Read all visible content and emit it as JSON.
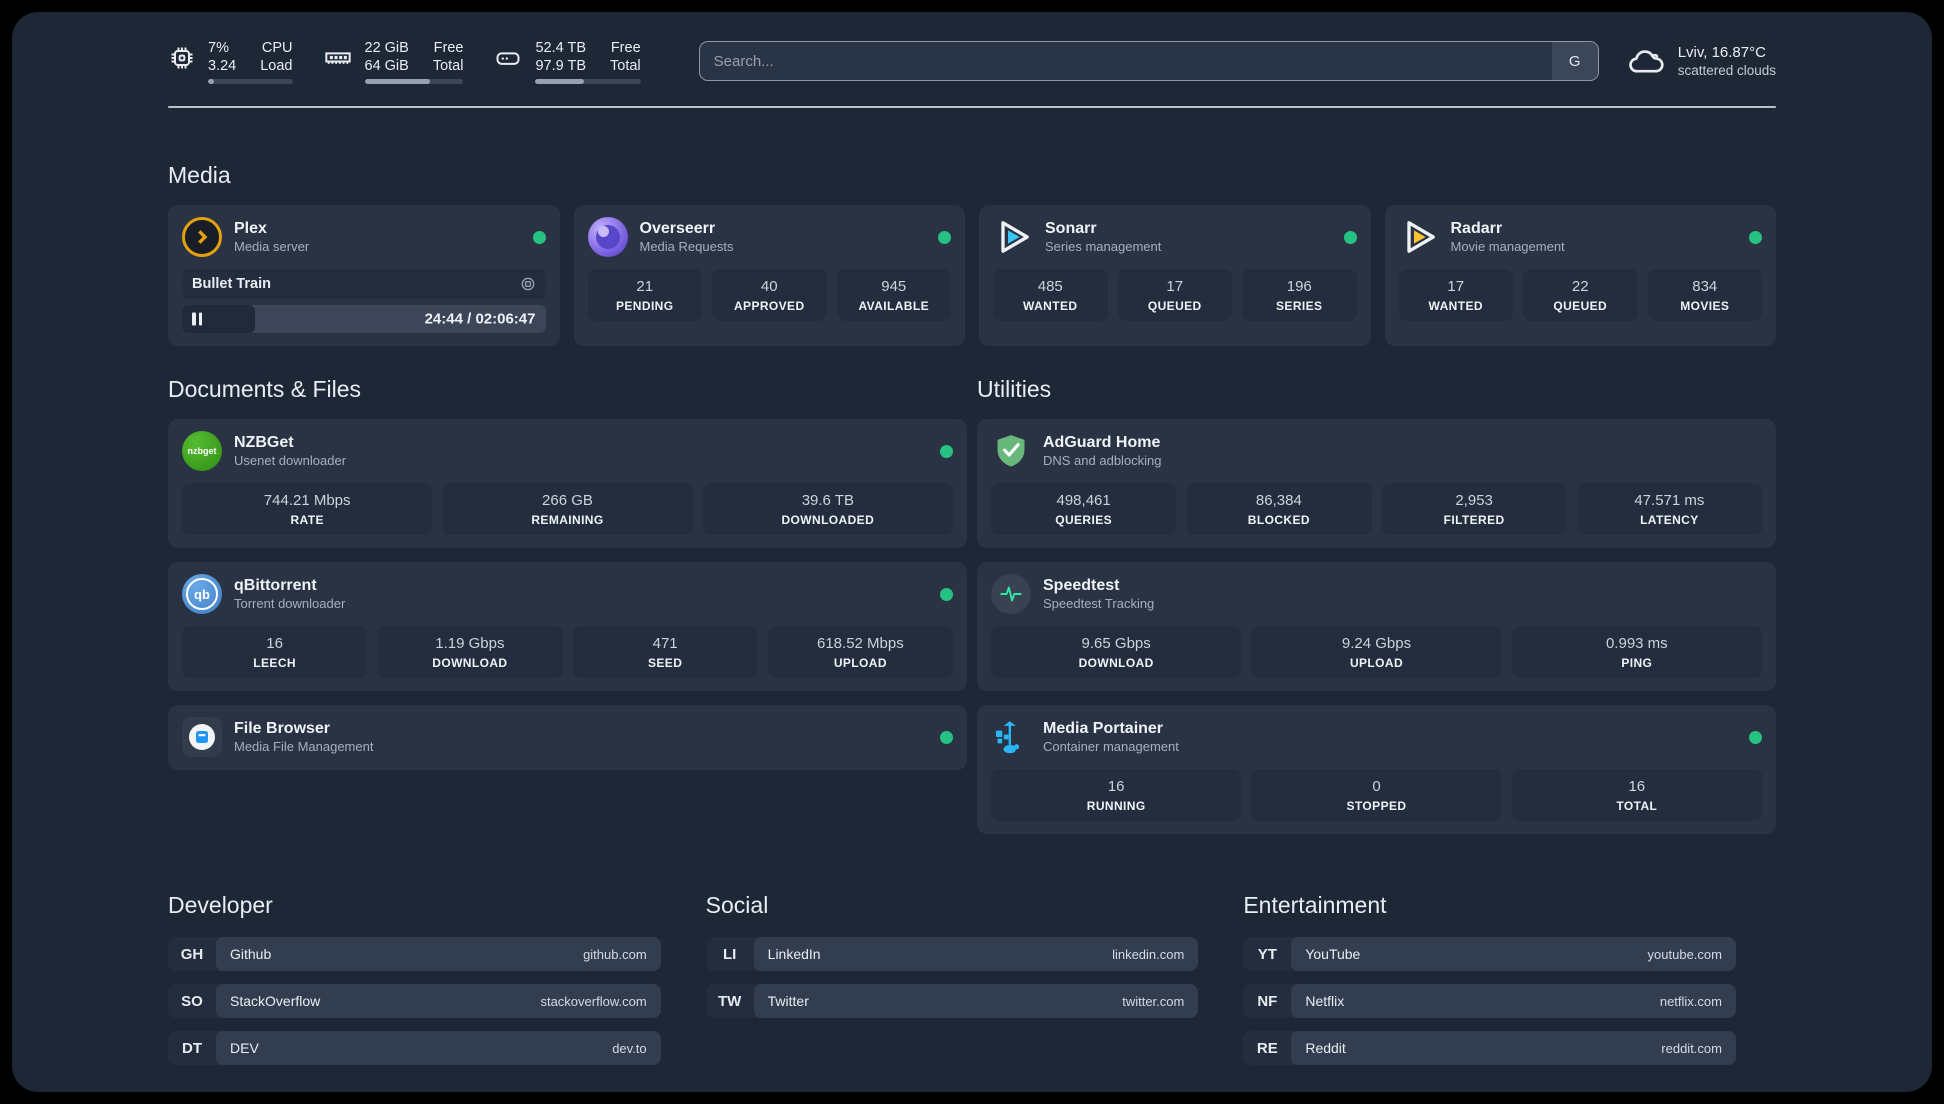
{
  "colors": {
    "background": "#1e2736",
    "card": "#2a3343",
    "tile": "#242d3d",
    "status_green": "#26c281",
    "plex_orange": "#e5a00d",
    "sonarr_blue": "#38c6f4",
    "radarr_yellow": "#ffc230",
    "nzbget_green": "#3ba318",
    "qbittorrent_blue": "#4a90d9",
    "adguard_green": "#68b77b",
    "speedtest_pulse": "#2ee6a8",
    "portainer_blue": "#29b6f6",
    "filebrowser_blue": "#2196f3"
  },
  "header": {
    "metrics": [
      {
        "icon": "cpu-icon",
        "value_top": "7%",
        "value_bottom": "3.24",
        "label_top": "CPU",
        "label_bottom": "Load",
        "progress": 7
      },
      {
        "icon": "ram-icon",
        "value_top": "22 GiB",
        "value_bottom": "64 GiB",
        "label_top": "Free",
        "label_bottom": "Total",
        "progress": 66
      },
      {
        "icon": "disk-icon",
        "value_top": "52.4 TB",
        "value_bottom": "97.9 TB",
        "label_top": "Free",
        "label_bottom": "Total",
        "progress": 46
      }
    ],
    "search": {
      "placeholder": "Search...",
      "button_label": "G"
    },
    "weather": {
      "icon": "cloud-icon",
      "location": "Lviv, 16.87°C",
      "condition": "scattered clouds"
    }
  },
  "media": {
    "title": "Media",
    "plex": {
      "title": "Plex",
      "subtitle": "Media server",
      "status": "online",
      "player": {
        "track": "Bullet Train",
        "time": "24:44 / 02:06:47",
        "progress": 20
      }
    },
    "overseerr": {
      "title": "Overseerr",
      "subtitle": "Media Requests",
      "status": "online",
      "stats": [
        {
          "value": "21",
          "label": "PENDING"
        },
        {
          "value": "40",
          "label": "APPROVED"
        },
        {
          "value": "945",
          "label": "AVAILABLE"
        }
      ]
    },
    "sonarr": {
      "title": "Sonarr",
      "subtitle": "Series management",
      "status": "online",
      "stats": [
        {
          "value": "485",
          "label": "WANTED"
        },
        {
          "value": "17",
          "label": "QUEUED"
        },
        {
          "value": "196",
          "label": "SERIES"
        }
      ]
    },
    "radarr": {
      "title": "Radarr",
      "subtitle": "Movie management",
      "status": "online",
      "stats": [
        {
          "value": "17",
          "label": "WANTED"
        },
        {
          "value": "22",
          "label": "QUEUED"
        },
        {
          "value": "834",
          "label": "MOVIES"
        }
      ]
    }
  },
  "documents": {
    "title": "Documents & Files",
    "nzbget": {
      "title": "NZBGet",
      "subtitle": "Usenet downloader",
      "status": "online",
      "icon_text": "nzbget",
      "stats": [
        {
          "value": "744.21 Mbps",
          "label": "RATE"
        },
        {
          "value": "266 GB",
          "label": "REMAINING"
        },
        {
          "value": "39.6 TB",
          "label": "DOWNLOADED"
        }
      ]
    },
    "qbittorrent": {
      "title": "qBittorrent",
      "subtitle": "Torrent downloader",
      "status": "online",
      "icon_text": "qb",
      "stats": [
        {
          "value": "16",
          "label": "LEECH"
        },
        {
          "value": "1.19 Gbps",
          "label": "DOWNLOAD"
        },
        {
          "value": "471",
          "label": "SEED"
        },
        {
          "value": "618.52 Mbps",
          "label": "UPLOAD"
        }
      ]
    },
    "filebrowser": {
      "title": "File Browser",
      "subtitle": "Media File Management",
      "status": "online"
    }
  },
  "utilities": {
    "title": "Utilities",
    "adguard": {
      "title": "AdGuard Home",
      "subtitle": "DNS and adblocking",
      "stats": [
        {
          "value": "498,461",
          "label": "QUERIES"
        },
        {
          "value": "86,384",
          "label": "BLOCKED"
        },
        {
          "value": "2,953",
          "label": "FILTERED"
        },
        {
          "value": "47.571 ms",
          "label": "LATENCY"
        }
      ]
    },
    "speedtest": {
      "title": "Speedtest",
      "subtitle": "Speedtest Tracking",
      "stats": [
        {
          "value": "9.65 Gbps",
          "label": "DOWNLOAD"
        },
        {
          "value": "9.24 Gbps",
          "label": "UPLOAD"
        },
        {
          "value": "0.993 ms",
          "label": "PING"
        }
      ]
    },
    "portainer": {
      "title": "Media Portainer",
      "subtitle": "Container management",
      "status": "online",
      "stats": [
        {
          "value": "16",
          "label": "RUNNING"
        },
        {
          "value": "0",
          "label": "STOPPED"
        },
        {
          "value": "16",
          "label": "TOTAL"
        }
      ]
    }
  },
  "links": {
    "developer": {
      "title": "Developer",
      "items": [
        {
          "abbr": "GH",
          "name": "Github",
          "url": "github.com"
        },
        {
          "abbr": "SO",
          "name": "StackOverflow",
          "url": "stackoverflow.com"
        },
        {
          "abbr": "DT",
          "name": "DEV",
          "url": "dev.to"
        }
      ]
    },
    "social": {
      "title": "Social",
      "items": [
        {
          "abbr": "LI",
          "name": "LinkedIn",
          "url": "linkedin.com"
        },
        {
          "abbr": "TW",
          "name": "Twitter",
          "url": "twitter.com"
        }
      ]
    },
    "entertainment": {
      "title": "Entertainment",
      "items": [
        {
          "abbr": "YT",
          "name": "YouTube",
          "url": "youtube.com"
        },
        {
          "abbr": "NF",
          "name": "Netflix",
          "url": "netflix.com"
        },
        {
          "abbr": "RE",
          "name": "Reddit",
          "url": "reddit.com"
        }
      ]
    }
  }
}
